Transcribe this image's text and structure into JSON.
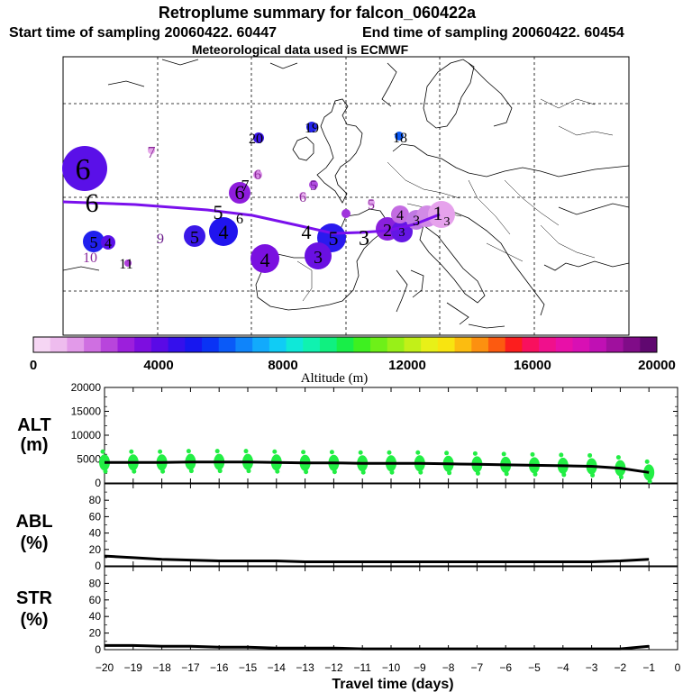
{
  "header": {
    "title": "Retroplume summary for falcon_060422a",
    "start_label": "Start time of sampling 20060422. 60447",
    "end_label": "End time of sampling 20060422. 60454",
    "met_label": "Meteorological data used is ECMWF"
  },
  "colorbar": {
    "ticks": [
      "0",
      "4000",
      "8000",
      "12000",
      "16000",
      "20000"
    ],
    "label": "Altitude (m)",
    "colors": [
      "#f6d6f4",
      "#eebcee",
      "#e29ae9",
      "#cf6fe1",
      "#b845dc",
      "#9c1fdc",
      "#7d0ee0",
      "#5a0ae6",
      "#3510ec",
      "#1717ef",
      "#0a33f5",
      "#0a5af8",
      "#0f84fa",
      "#12aafc",
      "#10ccf5",
      "#0fe8d8",
      "#10f2b0",
      "#10f080",
      "#18ee48",
      "#3ef020",
      "#6ef018",
      "#98f018",
      "#c2f018",
      "#e8f018",
      "#f8e410",
      "#fcbc10",
      "#fc9010",
      "#fc5a10",
      "#fc1e1e",
      "#f8105e",
      "#f0108c",
      "#e810a8",
      "#d810b4",
      "#c010b4",
      "#a0109e",
      "#800c88",
      "#600870"
    ]
  },
  "map": {
    "cluster_labels": [
      "6",
      "7",
      "20",
      "19",
      "18",
      "6",
      "5",
      "7",
      "6",
      "5",
      "6",
      "5",
      "4",
      "5",
      "1",
      "2",
      "3",
      "4",
      "5",
      "3",
      "6",
      "5",
      "4",
      "5",
      "9",
      "10",
      "11",
      "3",
      "4"
    ],
    "trajectory_label": "6"
  },
  "chart_data": [
    {
      "type": "line",
      "panel": "ALT",
      "ylabel": "ALT (m)",
      "ylabel_lines": [
        "ALT",
        "(m)"
      ],
      "ylim": [
        0,
        20000
      ],
      "yticks": [
        "0",
        "5000",
        "10000",
        "15000",
        "20000"
      ],
      "x": [
        -20,
        -19,
        -18,
        -17,
        -16,
        -15,
        -14,
        -13,
        -12,
        -11,
        -10,
        -9,
        -8,
        -7,
        -6,
        -5,
        -4,
        -3,
        -2,
        -1
      ],
      "values": [
        4300,
        4300,
        4300,
        4400,
        4400,
        4400,
        4300,
        4200,
        4200,
        4100,
        4100,
        4100,
        4000,
        3900,
        3800,
        3700,
        3600,
        3500,
        3100,
        2200
      ],
      "scatter_color": "#22ee44"
    },
    {
      "type": "line",
      "panel": "ABL",
      "ylabel": "ABL (%)",
      "ylabel_lines": [
        "ABL",
        "(%)"
      ],
      "ylim": [
        0,
        100
      ],
      "yticks": [
        "0",
        "20",
        "40",
        "60",
        "80"
      ],
      "x": [
        -20,
        -19,
        -18,
        -17,
        -16,
        -15,
        -14,
        -13,
        -12,
        -11,
        -10,
        -9,
        -8,
        -7,
        -6,
        -5,
        -4,
        -3,
        -2,
        -1
      ],
      "values": [
        12,
        10,
        8,
        7,
        6,
        6,
        6,
        5,
        5,
        5,
        5,
        5,
        5,
        5,
        5,
        5,
        5,
        5,
        6,
        8
      ]
    },
    {
      "type": "line",
      "panel": "STR",
      "ylabel": "STR (%)",
      "ylabel_lines": [
        "STR",
        "(%)"
      ],
      "ylim": [
        0,
        100
      ],
      "yticks": [
        "0",
        "20",
        "40",
        "60",
        "80"
      ],
      "x": [
        -20,
        -19,
        -18,
        -17,
        -16,
        -15,
        -14,
        -13,
        -12,
        -11,
        -10,
        -9,
        -8,
        -7,
        -6,
        -5,
        -4,
        -3,
        -2,
        -1
      ],
      "values": [
        5,
        5,
        4,
        4,
        3,
        3,
        2,
        2,
        2,
        1,
        1,
        1,
        1,
        1,
        1,
        1,
        1,
        1,
        1,
        4
      ]
    }
  ],
  "xaxis": {
    "label": "Travel time (days)",
    "ticks": [
      "−20",
      "−19",
      "−18",
      "−17",
      "−16",
      "−15",
      "−14",
      "−13",
      "−12",
      "−11",
      "−10",
      "−9",
      "−8",
      "−7",
      "−6",
      "−5",
      "−4",
      "−3",
      "−2",
      "−1",
      "0"
    ]
  }
}
